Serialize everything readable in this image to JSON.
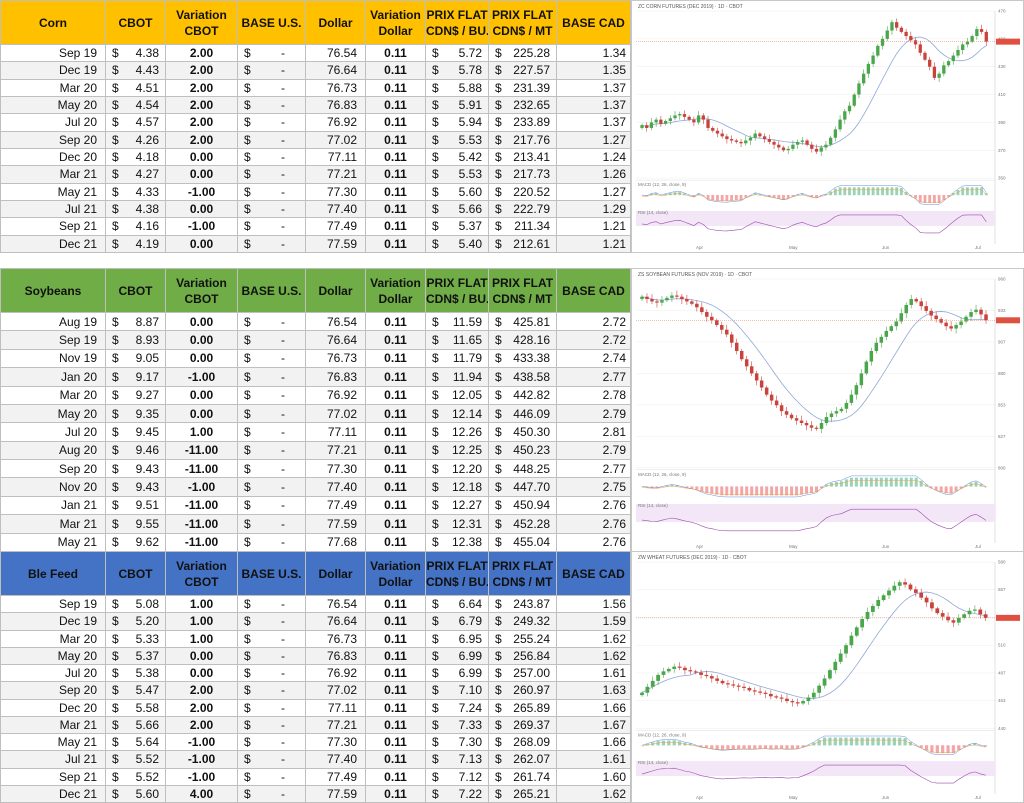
{
  "columns": {
    "cbot": "CBOT",
    "variation_cbot": [
      "Variation",
      "CBOT"
    ],
    "base_us": "BASE U.S.",
    "dollar": "Dollar",
    "variation_dollar": [
      "Variation",
      "Dollar"
    ],
    "prix_flat_bu": [
      "PRIX FLAT",
      "CDN$ / BU."
    ],
    "prix_flat_mt": [
      "PRIX FLAT",
      "CDN$ / MT"
    ],
    "base_cad": "BASE CAD"
  },
  "currency": "$",
  "dash": "-",
  "colors": {
    "corn_header": "#ffc000",
    "soybeans_header": "#70ad47",
    "wheat_header": "#4472c4",
    "up": "#2a9a3a",
    "down": "#e01818",
    "candle_up": "#4aa64a",
    "candle_down": "#c9423b",
    "ma": "#8fa8d8"
  },
  "tables": [
    {
      "commodity": "Corn",
      "header_color": "#ffc000",
      "rows": [
        {
          "month": "Sep 19",
          "cbot": "4.38",
          "var": "2.00",
          "dir": "up",
          "dollar": "76.54",
          "vdollar": "0.11",
          "bu": "5.72",
          "mt": "225.28",
          "cad": "1.34"
        },
        {
          "month": "Dec 19",
          "cbot": "4.43",
          "var": "2.00",
          "dir": "up",
          "dollar": "76.64",
          "vdollar": "0.11",
          "bu": "5.78",
          "mt": "227.57",
          "cad": "1.35"
        },
        {
          "month": "Mar 20",
          "cbot": "4.51",
          "var": "2.00",
          "dir": "up",
          "dollar": "76.73",
          "vdollar": "0.11",
          "bu": "5.88",
          "mt": "231.39",
          "cad": "1.37"
        },
        {
          "month": "May 20",
          "cbot": "4.54",
          "var": "2.00",
          "dir": "up",
          "dollar": "76.83",
          "vdollar": "0.11",
          "bu": "5.91",
          "mt": "232.65",
          "cad": "1.37"
        },
        {
          "month": "Jul 20",
          "cbot": "4.57",
          "var": "2.00",
          "dir": "up",
          "dollar": "76.92",
          "vdollar": "0.11",
          "bu": "5.94",
          "mt": "233.89",
          "cad": "1.37"
        },
        {
          "month": "Sep 20",
          "cbot": "4.26",
          "var": "2.00",
          "dir": "up",
          "dollar": "77.02",
          "vdollar": "0.11",
          "bu": "5.53",
          "mt": "217.76",
          "cad": "1.27"
        },
        {
          "month": "Dec 20",
          "cbot": "4.18",
          "var": "0.00",
          "dir": "flat",
          "dollar": "77.11",
          "vdollar": "0.11",
          "bu": "5.42",
          "mt": "213.41",
          "cad": "1.24"
        },
        {
          "month": "Mar 21",
          "cbot": "4.27",
          "var": "0.00",
          "dir": "flat",
          "dollar": "77.21",
          "vdollar": "0.11",
          "bu": "5.53",
          "mt": "217.73",
          "cad": "1.26"
        },
        {
          "month": "May 21",
          "cbot": "4.33",
          "var": "-1.00",
          "dir": "down",
          "dollar": "77.30",
          "vdollar": "0.11",
          "bu": "5.60",
          "mt": "220.52",
          "cad": "1.27"
        },
        {
          "month": "Jul 21",
          "cbot": "4.38",
          "var": "0.00",
          "dir": "flat",
          "dollar": "77.40",
          "vdollar": "0.11",
          "bu": "5.66",
          "mt": "222.79",
          "cad": "1.29"
        },
        {
          "month": "Sep 21",
          "cbot": "4.16",
          "var": "-1.00",
          "dir": "down",
          "dollar": "77.49",
          "vdollar": "0.11",
          "bu": "5.37",
          "mt": "211.34",
          "cad": "1.21"
        },
        {
          "month": "Dec 21",
          "cbot": "4.19",
          "var": "0.00",
          "dir": "flat",
          "dollar": "77.59",
          "vdollar": "0.11",
          "bu": "5.40",
          "mt": "212.61",
          "cad": "1.21"
        }
      ]
    },
    {
      "commodity": "Soybeans",
      "header_color": "#70ad47",
      "rows": [
        {
          "month": "Aug 19",
          "cbot": "8.87",
          "var": "0.00",
          "dir": "flat",
          "dollar": "76.54",
          "vdollar": "0.11",
          "bu": "11.59",
          "mt": "425.81",
          "cad": "2.72"
        },
        {
          "month": "Sep 19",
          "cbot": "8.93",
          "var": "0.00",
          "dir": "flat",
          "dollar": "76.64",
          "vdollar": "0.11",
          "bu": "11.65",
          "mt": "428.16",
          "cad": "2.72"
        },
        {
          "month": "Nov 19",
          "cbot": "9.05",
          "var": "0.00",
          "dir": "flat",
          "dollar": "76.73",
          "vdollar": "0.11",
          "bu": "11.79",
          "mt": "433.38",
          "cad": "2.74"
        },
        {
          "month": "Jan 20",
          "cbot": "9.17",
          "var": "-1.00",
          "dir": "down",
          "dollar": "76.83",
          "vdollar": "0.11",
          "bu": "11.94",
          "mt": "438.58",
          "cad": "2.77"
        },
        {
          "month": "Mar 20",
          "cbot": "9.27",
          "var": "0.00",
          "dir": "flat",
          "dollar": "76.92",
          "vdollar": "0.11",
          "bu": "12.05",
          "mt": "442.82",
          "cad": "2.78"
        },
        {
          "month": "May 20",
          "cbot": "9.35",
          "var": "0.00",
          "dir": "flat",
          "dollar": "77.02",
          "vdollar": "0.11",
          "bu": "12.14",
          "mt": "446.09",
          "cad": "2.79"
        },
        {
          "month": "Jul 20",
          "cbot": "9.45",
          "var": "1.00",
          "dir": "up",
          "dollar": "77.11",
          "vdollar": "0.11",
          "bu": "12.26",
          "mt": "450.30",
          "cad": "2.81"
        },
        {
          "month": "Aug 20",
          "cbot": "9.46",
          "var": "-11.00",
          "dir": "down",
          "dollar": "77.21",
          "vdollar": "0.11",
          "bu": "12.25",
          "mt": "450.23",
          "cad": "2.79"
        },
        {
          "month": "Sep 20",
          "cbot": "9.43",
          "var": "-11.00",
          "dir": "down",
          "dollar": "77.30",
          "vdollar": "0.11",
          "bu": "12.20",
          "mt": "448.25",
          "cad": "2.77"
        },
        {
          "month": "Nov 20",
          "cbot": "9.43",
          "var": "-1.00",
          "dir": "down",
          "dollar": "77.40",
          "vdollar": "0.11",
          "bu": "12.18",
          "mt": "447.70",
          "cad": "2.75"
        },
        {
          "month": "Jan 21",
          "cbot": "9.51",
          "var": "-11.00",
          "dir": "down",
          "dollar": "77.49",
          "vdollar": "0.11",
          "bu": "12.27",
          "mt": "450.94",
          "cad": "2.76"
        },
        {
          "month": "Mar 21",
          "cbot": "9.55",
          "var": "-11.00",
          "dir": "down",
          "dollar": "77.59",
          "vdollar": "0.11",
          "bu": "12.31",
          "mt": "452.28",
          "cad": "2.76"
        },
        {
          "month": "May 21",
          "cbot": "9.62",
          "var": "-11.00",
          "dir": "down",
          "dollar": "77.68",
          "vdollar": "0.11",
          "bu": "12.38",
          "mt": "455.04",
          "cad": "2.76"
        }
      ]
    },
    {
      "commodity": "Ble Feed",
      "header_color": "#4472c4",
      "rows": [
        {
          "month": "Sep 19",
          "cbot": "5.08",
          "var": "1.00",
          "dir": "up",
          "dollar": "76.54",
          "vdollar": "0.11",
          "bu": "6.64",
          "mt": "243.87",
          "cad": "1.56"
        },
        {
          "month": "Dec 19",
          "cbot": "5.20",
          "var": "1.00",
          "dir": "up",
          "dollar": "76.64",
          "vdollar": "0.11",
          "bu": "6.79",
          "mt": "249.32",
          "cad": "1.59"
        },
        {
          "month": "Mar 20",
          "cbot": "5.33",
          "var": "1.00",
          "dir": "up",
          "dollar": "76.73",
          "vdollar": "0.11",
          "bu": "6.95",
          "mt": "255.24",
          "cad": "1.62"
        },
        {
          "month": "May 20",
          "cbot": "5.37",
          "var": "0.00",
          "dir": "flat",
          "dollar": "76.83",
          "vdollar": "0.11",
          "bu": "6.99",
          "mt": "256.84",
          "cad": "1.62"
        },
        {
          "month": "Jul 20",
          "cbot": "5.38",
          "var": "0.00",
          "dir": "flat",
          "dollar": "76.92",
          "vdollar": "0.11",
          "bu": "6.99",
          "mt": "257.00",
          "cad": "1.61"
        },
        {
          "month": "Sep 20",
          "cbot": "5.47",
          "var": "2.00",
          "dir": "up",
          "dollar": "77.02",
          "vdollar": "0.11",
          "bu": "7.10",
          "mt": "260.97",
          "cad": "1.63"
        },
        {
          "month": "Dec 20",
          "cbot": "5.58",
          "var": "2.00",
          "dir": "up",
          "dollar": "77.11",
          "vdollar": "0.11",
          "bu": "7.24",
          "mt": "265.89",
          "cad": "1.66"
        },
        {
          "month": "Mar 21",
          "cbot": "5.66",
          "var": "2.00",
          "dir": "up",
          "dollar": "77.21",
          "vdollar": "0.11",
          "bu": "7.33",
          "mt": "269.37",
          "cad": "1.67"
        },
        {
          "month": "May 21",
          "cbot": "5.64",
          "var": "-1.00",
          "dir": "down",
          "dollar": "77.30",
          "vdollar": "0.11",
          "bu": "7.30",
          "mt": "268.09",
          "cad": "1.66"
        },
        {
          "month": "Jul 21",
          "cbot": "5.52",
          "var": "-1.00",
          "dir": "down",
          "dollar": "77.40",
          "vdollar": "0.11",
          "bu": "7.13",
          "mt": "262.07",
          "cad": "1.61"
        },
        {
          "month": "Sep 21",
          "cbot": "5.52",
          "var": "-1.00",
          "dir": "down",
          "dollar": "77.49",
          "vdollar": "0.11",
          "bu": "7.12",
          "mt": "261.74",
          "cad": "1.60"
        },
        {
          "month": "Dec 21",
          "cbot": "5.60",
          "var": "4.00",
          "dir": "up",
          "dollar": "77.59",
          "vdollar": "0.11",
          "bu": "7.22",
          "mt": "265.21",
          "cad": "1.62"
        }
      ]
    }
  ],
  "chart_data": [
    {
      "type": "candlestick",
      "title": "ZC CORN FUTURES (DEC 2019) · 1D · CBOT",
      "months": [
        "Apr",
        "May",
        "Jun",
        "Jul"
      ],
      "ylim": [
        350,
        470
      ],
      "close": [
        388,
        386,
        390,
        392,
        389,
        391,
        393,
        395,
        396,
        394,
        392,
        390,
        395,
        392,
        386,
        384,
        382,
        380,
        378,
        377,
        376,
        375,
        377,
        379,
        382,
        380,
        378,
        376,
        374,
        372,
        370,
        371,
        374,
        376,
        377,
        374,
        371,
        369,
        372,
        374,
        379,
        385,
        392,
        398,
        402,
        410,
        418,
        425,
        432,
        438,
        445,
        450,
        456,
        462,
        458,
        455,
        452,
        449,
        446,
        440,
        435,
        430,
        422,
        425,
        431,
        434,
        438,
        442,
        446,
        448,
        452,
        457,
        455,
        448
      ],
      "indicators": [
        "MACD (12, 26, close, 9)",
        "RSI (14, close)"
      ]
    },
    {
      "type": "candlestick",
      "title": "ZS SOYBEAN FUTURES (NOV 2019) · 1D · CBOT",
      "months": [
        "Apr",
        "May",
        "Jun",
        "Jul"
      ],
      "ylim": [
        800,
        960
      ],
      "close": [
        945,
        943,
        941,
        940,
        942,
        944,
        946,
        945,
        943,
        941,
        939,
        936,
        932,
        928,
        925,
        921,
        917,
        913,
        906,
        899,
        892,
        886,
        880,
        874,
        868,
        862,
        857,
        853,
        848,
        845,
        842,
        840,
        838,
        836,
        834,
        833,
        838,
        843,
        846,
        848,
        850,
        855,
        862,
        870,
        880,
        890,
        899,
        906,
        911,
        916,
        920,
        924,
        931,
        938,
        943,
        941,
        937,
        933,
        929,
        926,
        923,
        920,
        918,
        921,
        924,
        928,
        932,
        934,
        930,
        925
      ],
      "indicators": [
        "MACD (12, 26, close, 9)",
        "RSI (14, close)"
      ]
    },
    {
      "type": "candlestick",
      "title": "ZW WHEAT FUTURES (DEC 2019) · 1D · CBOT",
      "months": [
        "Apr",
        "May",
        "Jun",
        "Jul"
      ],
      "ylim": [
        440,
        580
      ],
      "close": [
        470,
        475,
        480,
        485,
        488,
        490,
        492,
        491,
        489,
        488,
        487,
        485,
        484,
        482,
        480,
        478,
        477,
        476,
        475,
        474,
        472,
        471,
        470,
        469,
        467,
        466,
        465,
        463,
        462,
        461,
        463,
        466,
        470,
        476,
        482,
        489,
        496,
        503,
        510,
        518,
        525,
        532,
        538,
        543,
        548,
        552,
        556,
        560,
        563,
        561,
        557,
        554,
        550,
        546,
        541,
        537,
        534,
        531,
        529,
        533,
        536,
        539,
        540,
        536,
        533
      ],
      "indicators": [
        "MACD (12, 26, close, 9)",
        "RSI (14, close)"
      ]
    }
  ]
}
